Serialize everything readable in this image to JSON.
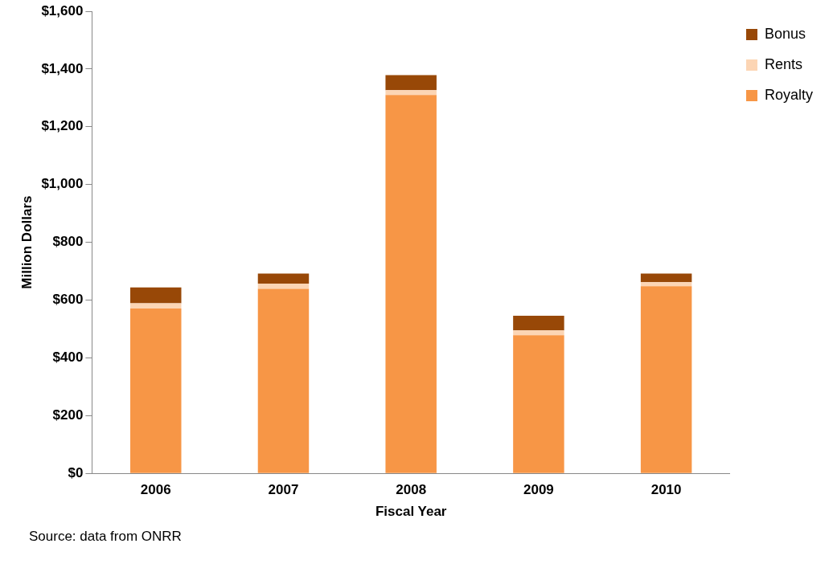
{
  "chart_data": {
    "type": "bar",
    "stacked": true,
    "categories": [
      "2006",
      "2007",
      "2008",
      "2009",
      "2010"
    ],
    "series": [
      {
        "name": "Royalty",
        "color": "#f79646",
        "values": [
          571,
          639,
          1310,
          478,
          648
        ]
      },
      {
        "name": "Rents",
        "color": "#fcd5b4",
        "values": [
          18,
          18,
          17,
          17,
          14
        ]
      },
      {
        "name": "Bonus",
        "color": "#984807",
        "values": [
          55,
          35,
          52,
          51,
          30
        ]
      }
    ],
    "xlabel": "Fiscal Year",
    "ylabel": "Million Dollars",
    "ylim": [
      0,
      1600
    ],
    "yticks": [
      {
        "value": 0,
        "label": "$0"
      },
      {
        "value": 200,
        "label": "$200"
      },
      {
        "value": 400,
        "label": "$400"
      },
      {
        "value": 600,
        "label": "$600"
      },
      {
        "value": 800,
        "label": "$800"
      },
      {
        "value": 1000,
        "label": "$1,000"
      },
      {
        "value": 1200,
        "label": "$1,200"
      },
      {
        "value": 1400,
        "label": "$1,400"
      },
      {
        "value": 1600,
        "label": "$1,600"
      }
    ],
    "grid": false,
    "legend": "top right",
    "annotations": [
      "Source: data from ONRR"
    ]
  }
}
